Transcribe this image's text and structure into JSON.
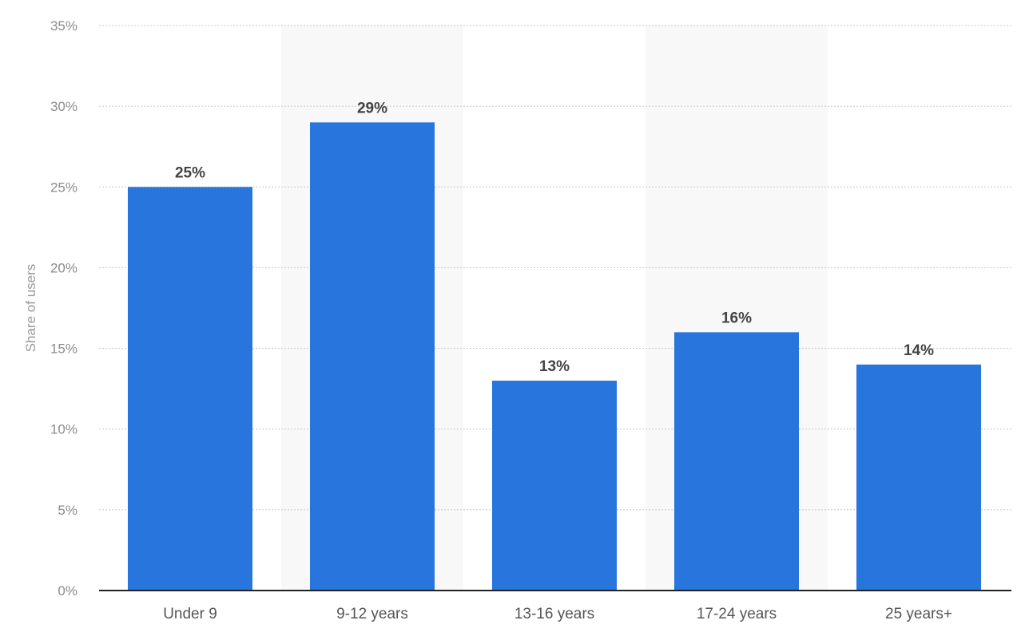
{
  "chart_data": {
    "type": "bar",
    "categories": [
      "Under 9",
      "9-12 years",
      "13-16 years",
      "17-24 years",
      "25 years+"
    ],
    "values": [
      25,
      29,
      13,
      16,
      14
    ],
    "data_labels": [
      "25%",
      "29%",
      "13%",
      "16%",
      "14%"
    ],
    "title": "",
    "xlabel": "",
    "ylabel": "Share of users",
    "ylim": [
      0,
      35
    ],
    "yticks": [
      0,
      5,
      10,
      15,
      20,
      25,
      30,
      35
    ],
    "ytick_labels": [
      "0%",
      "5%",
      "10%",
      "15%",
      "20%",
      "25%",
      "30%",
      "35%"
    ],
    "grid": true,
    "legend": "none",
    "colors": {
      "bar": "#2876dd",
      "band": "#f8f8f8",
      "grid": "#c8c8c8",
      "axis": "#222222"
    }
  }
}
